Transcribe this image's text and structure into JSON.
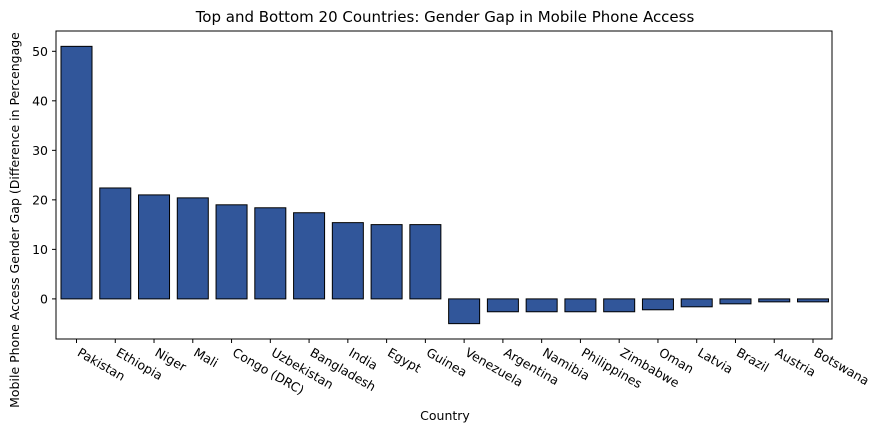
{
  "chart_data": {
    "type": "bar",
    "title": "Top and Bottom 20 Countries: Gender Gap in Mobile Phone Access",
    "xlabel": "Country",
    "ylabel": "Mobile Phone Access Gender Gap (Difference in Percengage",
    "categories": [
      "Pakistan",
      "Ethiopia",
      "Niger",
      "Mali",
      "Congo (DRC)",
      "Uzbekistan",
      "Bangladesh",
      "India",
      "Egypt",
      "Guinea",
      "Venezuela",
      "Argentina",
      "Namibia",
      "Philippines",
      "Zimbabwe",
      "Oman",
      "Latvia",
      "Brazil",
      "Austria",
      "Botswana"
    ],
    "values": [
      51,
      22.4,
      21,
      20.4,
      19,
      18.4,
      17.4,
      15.4,
      15,
      15,
      -5,
      -2.6,
      -2.6,
      -2.6,
      -2.6,
      -2.2,
      -1.6,
      -1,
      -0.6,
      -0.6
    ],
    "yticks": [
      0,
      10,
      20,
      30,
      40,
      50
    ],
    "ylim": [
      -8.1,
      54.1
    ],
    "grid": false,
    "bar_color": "#31569a",
    "edge_color": "#000000"
  }
}
